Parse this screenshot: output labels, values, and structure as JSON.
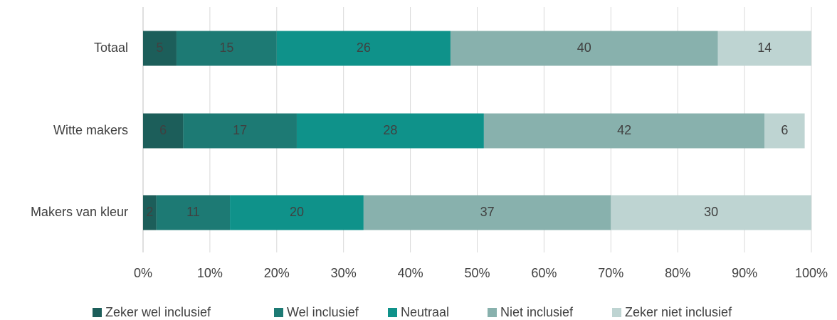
{
  "chart_data": {
    "type": "stacked_bar_horizontal",
    "categories": [
      "Totaal",
      "Witte makers",
      "Makers van kleur"
    ],
    "series": [
      {
        "name": "Zeker wel inclusief",
        "color": "#1c5e5a",
        "values": [
          5,
          6,
          2
        ]
      },
      {
        "name": "Wel inclusief",
        "color": "#1d7a74",
        "values": [
          15,
          17,
          11
        ]
      },
      {
        "name": "Neutraal",
        "color": "#0f928a",
        "values": [
          26,
          28,
          20
        ]
      },
      {
        "name": "Niet inclusief",
        "color": "#88b1ad",
        "values": [
          40,
          42,
          37
        ]
      },
      {
        "name": "Zeker niet inclusief",
        "color": "#bed4d2",
        "values": [
          14,
          6,
          30
        ]
      }
    ],
    "xlim": [
      0,
      100
    ],
    "xticks": [
      {
        "value": 0,
        "label": "0%"
      },
      {
        "value": 10,
        "label": "10%"
      },
      {
        "value": 20,
        "label": "20%"
      },
      {
        "value": 30,
        "label": "30%"
      },
      {
        "value": 40,
        "label": "40%"
      },
      {
        "value": 50,
        "label": "50%"
      },
      {
        "value": 60,
        "label": "60%"
      },
      {
        "value": 70,
        "label": "70%"
      },
      {
        "value": 80,
        "label": "80%"
      },
      {
        "value": 90,
        "label": "90%"
      },
      {
        "value": 100,
        "label": "100%"
      }
    ],
    "grid": true,
    "legend": "bottom"
  }
}
